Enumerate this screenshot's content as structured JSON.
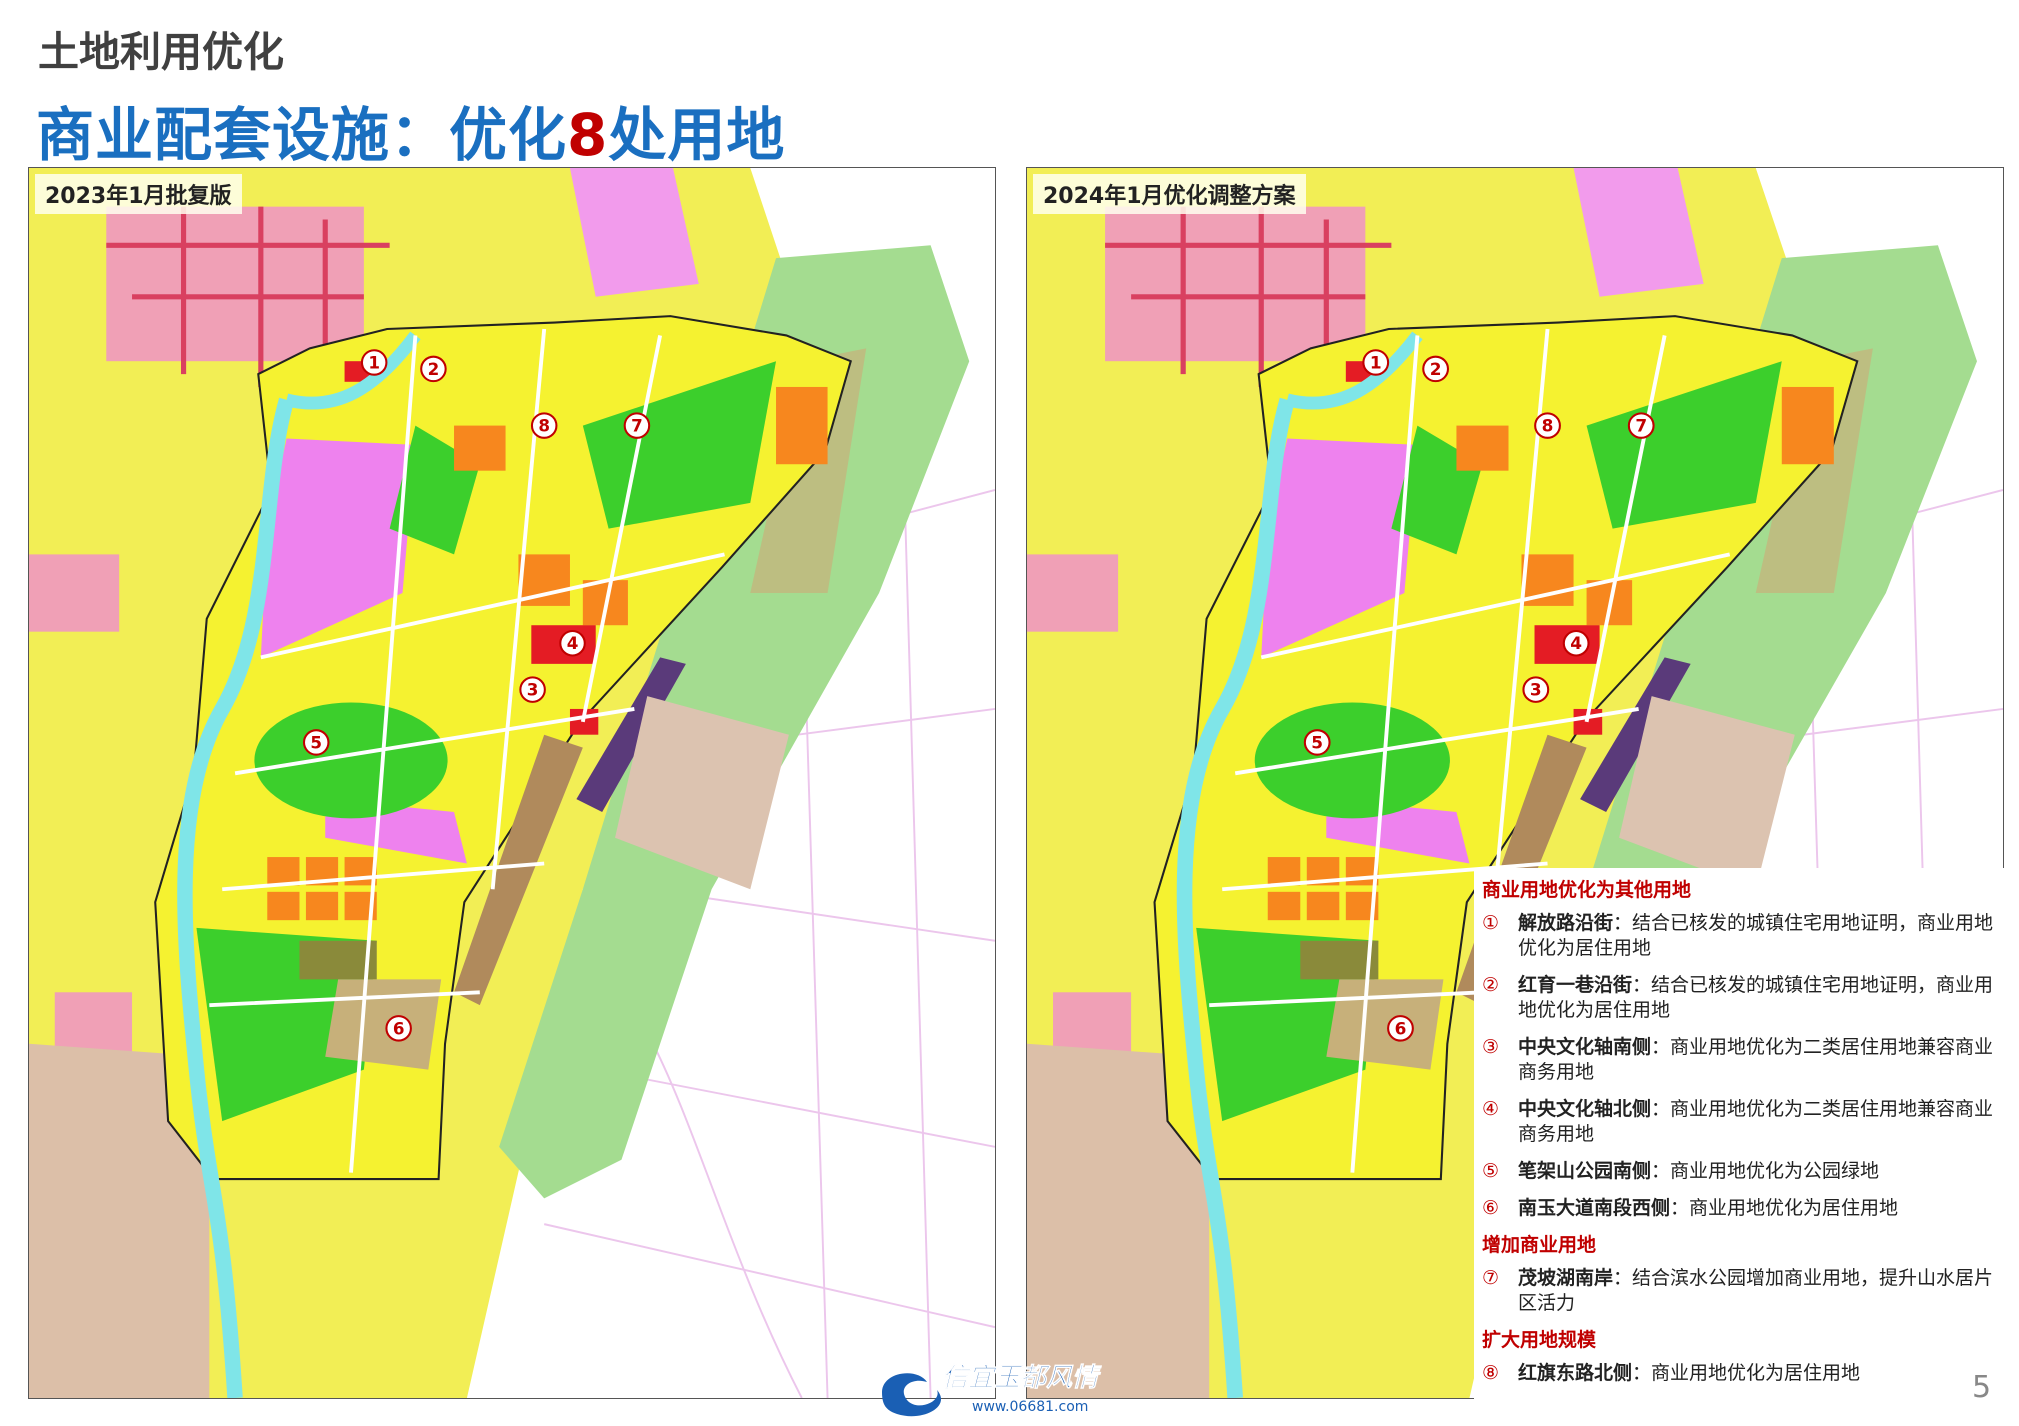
{
  "header": {
    "section": "土地利用优化",
    "title_prefix": "商业配套设施：优化",
    "title_number": "8",
    "title_suffix": "处用地"
  },
  "maps": [
    {
      "label": "2023年1月批复版"
    },
    {
      "label": "2024年1月优化调整方案"
    }
  ],
  "markers": [
    "1",
    "2",
    "8",
    "7",
    "4",
    "3",
    "5",
    "6"
  ],
  "legend": {
    "groups": [
      {
        "heading": "商业用地优化为其他用地",
        "items": [
          {
            "number": "①",
            "name": "解放路沿街",
            "desc": "：结合已核发的城镇住宅用地证明，商业用地优化为居住用地"
          },
          {
            "number": "②",
            "name": "红育一巷沿街",
            "desc": "：结合已核发的城镇住宅用地证明，商业用地优化为居住用地"
          },
          {
            "number": "③",
            "name": "中央文化轴南侧",
            "desc": "：商业用地优化为二类居住用地兼容商业商务用地"
          },
          {
            "number": "④",
            "name": "中央文化轴北侧",
            "desc": "：商业用地优化为二类居住用地兼容商业商务用地"
          },
          {
            "number": "⑤",
            "name": "笔架山公园南侧",
            "desc": "：商业用地优化为公园绿地"
          },
          {
            "number": "⑥",
            "name": "南玉大道南段西侧",
            "desc": "：商业用地优化为居住用地"
          }
        ]
      },
      {
        "heading": "增加商业用地",
        "items": [
          {
            "number": "⑦",
            "name": "茂坡湖南岸",
            "desc": "：结合滨水公园增加商业用地，提升山水居片区活力"
          }
        ]
      },
      {
        "heading": "扩大用地规模",
        "items": [
          {
            "number": "⑧",
            "name": "红旗东路北侧",
            "desc": "：商业用地优化为居住用地"
          }
        ]
      }
    ]
  },
  "watermark": {
    "brand": "信宜玉都风情",
    "url": "www.06681.com"
  },
  "page_number": "5"
}
